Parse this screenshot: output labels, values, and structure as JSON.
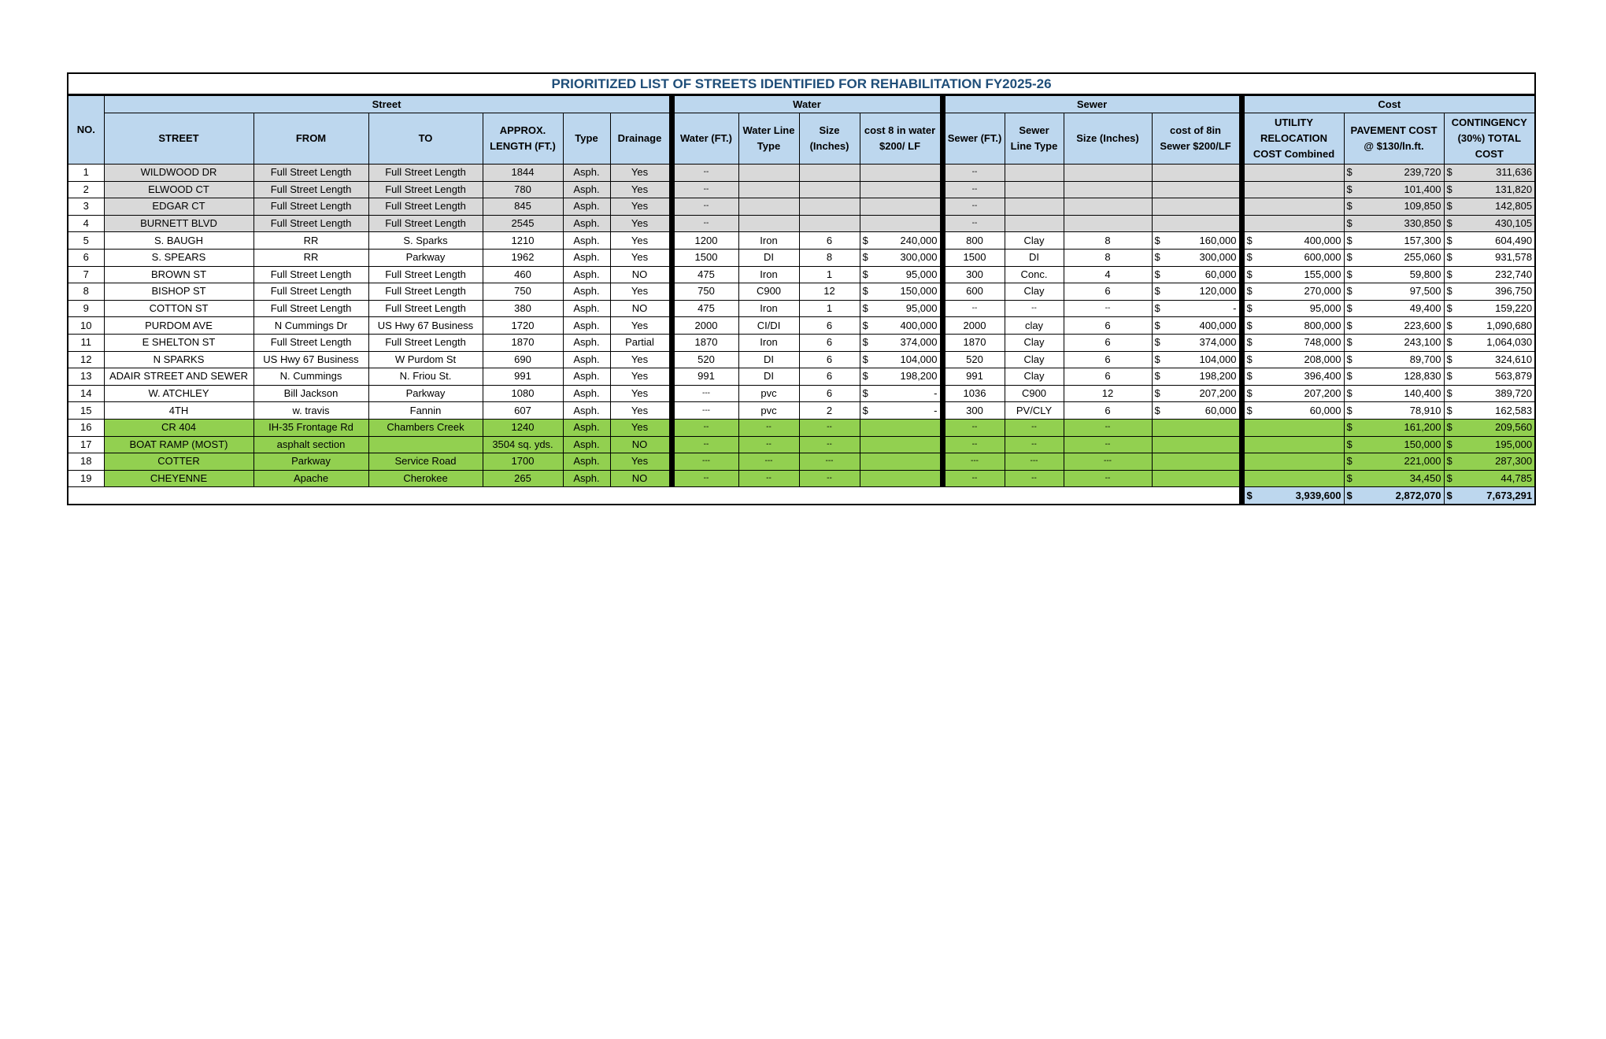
{
  "title": "PRIORITIZED LIST OF STREETS IDENTIFIED FOR REHABILITATION FY2025-26",
  "currency_symbol": "$",
  "colors": {
    "header_bg": "#bdd7ee",
    "title": "#1f4e79",
    "gray_row": "#d9d9d9",
    "green_row": "#92d050"
  },
  "groups": {
    "no": "NO.",
    "street": "Street",
    "water": "Water",
    "sewer": "Sewer",
    "cost": "Cost"
  },
  "headers": [
    "STREET",
    "FROM",
    "TO",
    "APPROX. LENGTH (FT.)",
    "Type",
    "Drainage",
    "Water (FT.)",
    "Water Line Type",
    "Size (Inches)",
    "cost 8 in water $200/ LF",
    "Sewer (FT.)",
    "Sewer Line Type",
    "Size (Inches)",
    "cost of 8in Sewer $200/LF",
    "UTILITY RELOCATION COST Combined",
    "PAVEMENT COST @ $130/ln.ft.",
    "CONTINGENCY (30%)  TOTAL COST"
  ],
  "rows": [
    {
      "no": "1",
      "street": "WILDWOOD DR",
      "from": "Full Street Length",
      "to": "Full Street Length",
      "length": "1844",
      "type": "Asph.",
      "drainage": "Yes",
      "water_ft": "--",
      "water_type": "",
      "water_size": "",
      "water_cost": null,
      "sewer_ft": "--",
      "sewer_type": "",
      "sewer_size": "",
      "sewer_cost": null,
      "utility": null,
      "pavement": "239,720",
      "total": "311,636",
      "shade": "gray"
    },
    {
      "no": "2",
      "street": "ELWOOD CT",
      "from": "Full Street Length",
      "to": "Full Street Length",
      "length": "780",
      "type": "Asph.",
      "drainage": "Yes",
      "water_ft": "--",
      "water_type": "",
      "water_size": "",
      "water_cost": null,
      "sewer_ft": "--",
      "sewer_type": "",
      "sewer_size": "",
      "sewer_cost": null,
      "utility": null,
      "pavement": "101,400",
      "total": "131,820",
      "shade": "gray"
    },
    {
      "no": "3",
      "street": "EDGAR CT",
      "from": "Full Street Length",
      "to": "Full Street Length",
      "length": "845",
      "type": "Asph.",
      "drainage": "Yes",
      "water_ft": "--",
      "water_type": "",
      "water_size": "",
      "water_cost": null,
      "sewer_ft": "--",
      "sewer_type": "",
      "sewer_size": "",
      "sewer_cost": null,
      "utility": null,
      "pavement": "109,850",
      "total": "142,805",
      "shade": "gray"
    },
    {
      "no": "4",
      "street": "BURNETT BLVD",
      "from": "Full Street Length",
      "to": "Full Street Length",
      "length": "2545",
      "type": "Asph.",
      "drainage": "Yes",
      "water_ft": "--",
      "water_type": "",
      "water_size": "",
      "water_cost": null,
      "sewer_ft": "--",
      "sewer_type": "",
      "sewer_size": "",
      "sewer_cost": null,
      "utility": null,
      "pavement": "330,850",
      "total": "430,105",
      "shade": "gray"
    },
    {
      "no": "5",
      "street": "S. BAUGH",
      "from": "RR",
      "to": "S. Sparks",
      "length": "1210",
      "type": "Asph.",
      "drainage": "Yes",
      "water_ft": "1200",
      "water_type": "Iron",
      "water_size": "6",
      "water_cost": "240,000",
      "sewer_ft": "800",
      "sewer_type": "Clay",
      "sewer_size": "8",
      "sewer_cost": "160,000",
      "utility": "400,000",
      "pavement": "157,300",
      "total": "604,490",
      "shade": "white"
    },
    {
      "no": "6",
      "street": "S. SPEARS",
      "from": "RR",
      "to": "Parkway",
      "length": "1962",
      "type": "Asph.",
      "drainage": "Yes",
      "water_ft": "1500",
      "water_type": "DI",
      "water_size": "8",
      "water_cost": "300,000",
      "sewer_ft": "1500",
      "sewer_type": "DI",
      "sewer_size": "8",
      "sewer_cost": "300,000",
      "utility": "600,000",
      "pavement": "255,060",
      "total": "931,578",
      "shade": "white"
    },
    {
      "no": "7",
      "street": "BROWN ST",
      "from": "Full Street Length",
      "to": "Full Street Length",
      "length": "460",
      "type": "Asph.",
      "drainage": "NO",
      "water_ft": "475",
      "water_type": "Iron",
      "water_size": "1",
      "water_cost": "95,000",
      "sewer_ft": "300",
      "sewer_type": "Conc.",
      "sewer_size": "4",
      "sewer_cost": "60,000",
      "utility": "155,000",
      "pavement": "59,800",
      "total": "232,740",
      "shade": "white"
    },
    {
      "no": "8",
      "street": "BISHOP ST",
      "from": "Full Street Length",
      "to": "Full Street Length",
      "length": "750",
      "type": "Asph.",
      "drainage": "Yes",
      "water_ft": "750",
      "water_type": "C900",
      "water_size": "12",
      "water_cost": "150,000",
      "sewer_ft": "600",
      "sewer_type": "Clay",
      "sewer_size": "6",
      "sewer_cost": "120,000",
      "utility": "270,000",
      "pavement": "97,500",
      "total": "396,750",
      "shade": "white"
    },
    {
      "no": "9",
      "street": "COTTON ST",
      "from": "Full Street Length",
      "to": "Full Street Length",
      "length": "380",
      "type": "Asph.",
      "drainage": "NO",
      "water_ft": "475",
      "water_type": "Iron",
      "water_size": "1",
      "water_cost": "95,000",
      "sewer_ft": "--",
      "sewer_type": "--",
      "sewer_size": "--",
      "sewer_cost": "-",
      "utility": "95,000",
      "pavement": "49,400",
      "total": "159,220",
      "shade": "white"
    },
    {
      "no": "10",
      "street": "PURDOM AVE",
      "from": "N Cummings Dr",
      "to": "US Hwy 67 Business",
      "length": "1720",
      "type": "Asph.",
      "drainage": "Yes",
      "water_ft": "2000",
      "water_type": "CI/DI",
      "water_size": "6",
      "water_cost": "400,000",
      "sewer_ft": "2000",
      "sewer_type": "clay",
      "sewer_size": "6",
      "sewer_cost": "400,000",
      "utility": "800,000",
      "pavement": "223,600",
      "total": "1,090,680",
      "shade": "white"
    },
    {
      "no": "11",
      "street": "E SHELTON ST",
      "from": "Full Street Length",
      "to": "Full Street Length",
      "length": "1870",
      "type": "Asph.",
      "drainage": "Partial",
      "water_ft": "1870",
      "water_type": "Iron",
      "water_size": "6",
      "water_cost": "374,000",
      "sewer_ft": "1870",
      "sewer_type": "Clay",
      "sewer_size": "6",
      "sewer_cost": "374,000",
      "utility": "748,000",
      "pavement": "243,100",
      "total": "1,064,030",
      "shade": "white"
    },
    {
      "no": "12",
      "street": "N SPARKS",
      "from": "US Hwy 67 Business",
      "to": "W Purdom St",
      "length": "690",
      "type": "Asph.",
      "drainage": "Yes",
      "water_ft": "520",
      "water_type": "DI",
      "water_size": "6",
      "water_cost": "104,000",
      "sewer_ft": "520",
      "sewer_type": "Clay",
      "sewer_size": "6",
      "sewer_cost": "104,000",
      "utility": "208,000",
      "pavement": "89,700",
      "total": "324,610",
      "shade": "white"
    },
    {
      "no": "13",
      "street": "ADAIR STREET AND SEWER",
      "from": "N. Cummings",
      "to": "N. Friou St.",
      "length": "991",
      "type": "Asph.",
      "drainage": "Yes",
      "water_ft": "991",
      "water_type": "DI",
      "water_size": "6",
      "water_cost": "198,200",
      "sewer_ft": "991",
      "sewer_type": "Clay",
      "sewer_size": "6",
      "sewer_cost": "198,200",
      "utility": "396,400",
      "pavement": "128,830",
      "total": "563,879",
      "shade": "white"
    },
    {
      "no": "14",
      "street": "W. ATCHLEY",
      "from": "Bill Jackson",
      "to": "Parkway",
      "length": "1080",
      "type": "Asph.",
      "drainage": "Yes",
      "water_ft": "---",
      "water_type": "pvc",
      "water_size": "6",
      "water_cost": "-",
      "sewer_ft": "1036",
      "sewer_type": "C900",
      "sewer_size": "12",
      "sewer_cost": "207,200",
      "utility": "207,200",
      "pavement": "140,400",
      "total": "389,720",
      "shade": "white"
    },
    {
      "no": "15",
      "street": "4TH",
      "from": "w. travis",
      "to": "Fannin",
      "length": "607",
      "type": "Asph.",
      "drainage": "Yes",
      "water_ft": "---",
      "water_type": "pvc",
      "water_size": "2",
      "water_cost": "-",
      "sewer_ft": "300",
      "sewer_type": "PV/CLY",
      "sewer_size": "6",
      "sewer_cost": "60,000",
      "utility": "60,000",
      "pavement": "78,910",
      "total": "162,583",
      "shade": "white"
    },
    {
      "no": "16",
      "street": "CR 404",
      "from": "IH-35 Frontage Rd",
      "to": "Chambers Creek",
      "length": "1240",
      "type": "Asph.",
      "drainage": "Yes",
      "water_ft": "--",
      "water_type": "--",
      "water_size": "--",
      "water_cost": null,
      "sewer_ft": "--",
      "sewer_type": "--",
      "sewer_size": "--",
      "sewer_cost": null,
      "utility": null,
      "pavement": "161,200",
      "total": "209,560",
      "shade": "green"
    },
    {
      "no": "17",
      "street": "BOAT RAMP (MOST)",
      "from": "asphalt section",
      "to": "",
      "length": "3504 sq. yds.",
      "type": "Asph.",
      "drainage": "NO",
      "water_ft": "--",
      "water_type": "--",
      "water_size": "--",
      "water_cost": null,
      "sewer_ft": "--",
      "sewer_type": "--",
      "sewer_size": "--",
      "sewer_cost": null,
      "utility": null,
      "pavement": "150,000",
      "total": "195,000",
      "shade": "green"
    },
    {
      "no": "18",
      "street": "COTTER",
      "from": "Parkway",
      "to": "Service Road",
      "length": "1700",
      "type": "Asph.",
      "drainage": "Yes",
      "water_ft": "---",
      "water_type": "---",
      "water_size": "---",
      "water_cost": null,
      "sewer_ft": "---",
      "sewer_type": "---",
      "sewer_size": "---",
      "sewer_cost": null,
      "utility": null,
      "pavement": "221,000",
      "total": "287,300",
      "shade": "green"
    },
    {
      "no": "19",
      "street": "CHEYENNE",
      "from": "Apache",
      "to": "Cherokee",
      "length": "265",
      "type": "Asph.",
      "drainage": "NO",
      "water_ft": "--",
      "water_type": "--",
      "water_size": "--",
      "water_cost": null,
      "sewer_ft": "--",
      "sewer_type": "--",
      "sewer_size": "--",
      "sewer_cost": null,
      "utility": null,
      "pavement": "34,450",
      "total": "44,785",
      "shade": "green"
    }
  ],
  "totals": {
    "utility": "3,939,600",
    "pavement": "2,872,070",
    "total": "7,673,291"
  }
}
